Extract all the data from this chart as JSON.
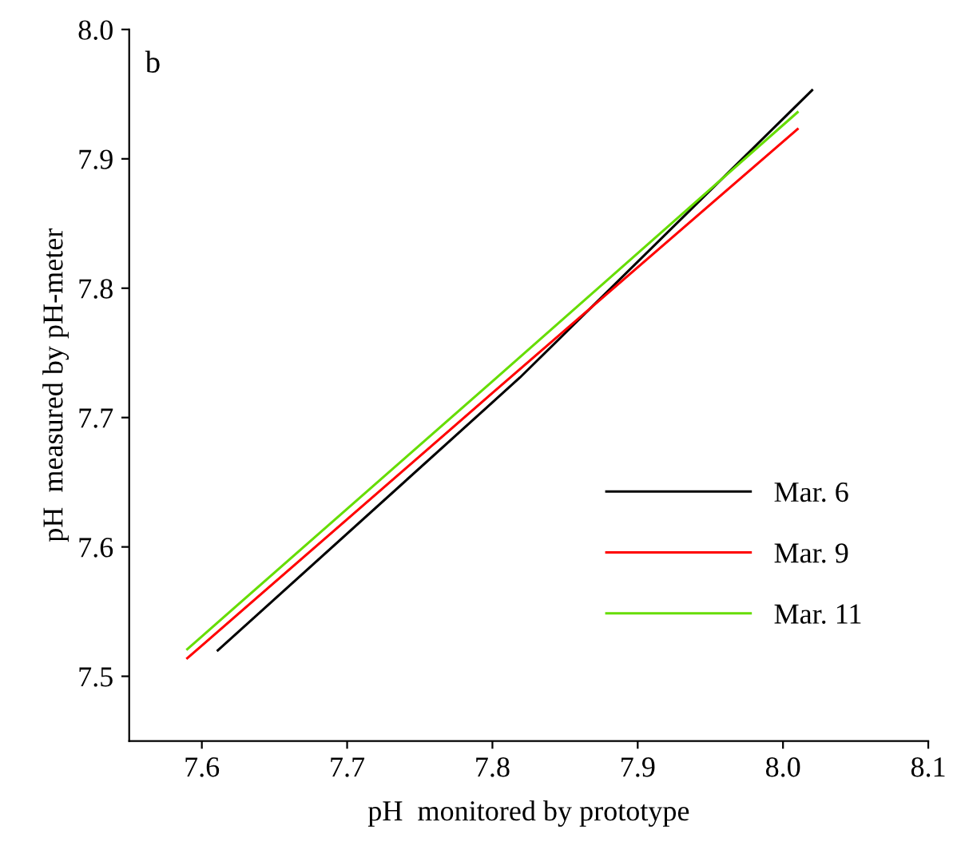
{
  "chart_data": {
    "type": "line",
    "xlabel": "pH  monitored by prototype",
    "ylabel": "pH  measured by pH-meter",
    "annotations": [
      "b"
    ],
    "xlim": [
      7.55,
      8.1
    ],
    "xticks": [
      7.6,
      7.7,
      7.8,
      7.9,
      {
        "value": 8,
        "label": "8.0"
      },
      8.1
    ],
    "ylim": [
      7.45,
      8.0
    ],
    "yticks": [
      7.5,
      7.6,
      7.7,
      7.8,
      7.9,
      {
        "value": 8,
        "label": "8.0"
      }
    ],
    "series": [
      {
        "name": "Mar. 6",
        "color": "#000000",
        "x": [
          7.611,
          7.819,
          8.02
        ],
        "values": [
          7.52,
          7.731,
          7.953
        ]
      },
      {
        "name": "Mar. 9",
        "color": "#ff0000",
        "x": [
          7.59,
          7.8,
          8.01
        ],
        "values": [
          7.514,
          7.719,
          7.923
        ]
      },
      {
        "name": "Mar. 11",
        "color": "#66dd00",
        "x": [
          7.59,
          7.8,
          8.01
        ],
        "values": [
          7.521,
          7.728,
          7.936
        ]
      }
    ],
    "legend": "bottom right",
    "grid": false,
    "marker": "none",
    "line_style": "solid"
  }
}
